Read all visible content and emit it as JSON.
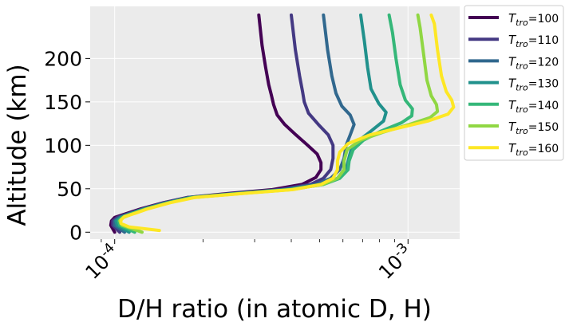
{
  "chart_data": {
    "type": "line",
    "title": "",
    "xlabel": "D/H ratio (in atomic D, H)",
    "ylabel": "Altitude (km)",
    "xscale": "log",
    "xlim": [
      8.25e-05,
      0.0015
    ],
    "ylim": [
      -8,
      260
    ],
    "grid": true,
    "legend_position": "outside-right-top",
    "background": "#ebebeb",
    "x_ticks": [
      {
        "value": 0.0001,
        "base": "10",
        "exponent": "-4"
      },
      {
        "value": 0.001,
        "base": "10",
        "exponent": "-3"
      }
    ],
    "y_ticks": [
      0,
      50,
      100,
      150,
      200
    ],
    "y_tick_labels": [
      "0",
      "50",
      "100",
      "150",
      "200"
    ],
    "series": [
      {
        "name": "T_tro=100",
        "label_main": "T",
        "label_sub": "tro",
        "label_value": "=100",
        "color": "#440154",
        "points": [
          [
            0.0001,
            0
          ],
          [
            9.7e-05,
            8
          ],
          [
            9.75e-05,
            13
          ],
          [
            0.0001,
            17
          ],
          [
            0.000111,
            22
          ],
          [
            0.000123,
            27
          ],
          [
            0.000147,
            34
          ],
          [
            0.000177,
            40
          ],
          [
            0.000252,
            45
          ],
          [
            0.000345,
            49
          ],
          [
            0.000435,
            55
          ],
          [
            0.000485,
            63
          ],
          [
            0.000505,
            72
          ],
          [
            0.000505,
            80
          ],
          [
            0.00049,
            90
          ],
          [
            0.000455,
            100
          ],
          [
            0.000415,
            112
          ],
          [
            0.00038,
            124
          ],
          [
            0.000358,
            135
          ],
          [
            0.000348,
            147
          ],
          [
            0.000342,
            158
          ],
          [
            0.000335,
            170
          ],
          [
            0.000327,
            190
          ],
          [
            0.000318,
            215
          ],
          [
            0.00031,
            250
          ]
        ]
      },
      {
        "name": "T_tro=110",
        "label_main": "T",
        "label_sub": "tro",
        "label_value": "=110",
        "color": "#443983",
        "points": [
          [
            0.000104,
            0
          ],
          [
            9.85e-05,
            8
          ],
          [
            9.85e-05,
            13
          ],
          [
            0.000102,
            17
          ],
          [
            0.000113,
            22
          ],
          [
            0.000125,
            27
          ],
          [
            0.000148,
            34
          ],
          [
            0.000178,
            40
          ],
          [
            0.000262,
            45
          ],
          [
            0.000365,
            49
          ],
          [
            0.000465,
            55
          ],
          [
            0.000515,
            62
          ],
          [
            0.000545,
            72
          ],
          [
            0.000555,
            85
          ],
          [
            0.000555,
            100
          ],
          [
            0.000535,
            112
          ],
          [
            0.000495,
            124
          ],
          [
            0.000458,
            137
          ],
          [
            0.000443,
            150
          ],
          [
            0.000437,
            162
          ],
          [
            0.000427,
            180
          ],
          [
            0.000413,
            210
          ],
          [
            0.0004,
            250
          ]
        ]
      },
      {
        "name": "T_tro=120",
        "label_main": "T",
        "label_sub": "tro",
        "label_value": "=120",
        "color": "#31688e",
        "points": [
          [
            0.000108,
            0
          ],
          [
            0.0001,
            8
          ],
          [
            0.0001,
            13
          ],
          [
            0.000104,
            17
          ],
          [
            0.000114,
            22
          ],
          [
            0.000126,
            27
          ],
          [
            0.00015,
            34
          ],
          [
            0.00018,
            40
          ],
          [
            0.000268,
            45
          ],
          [
            0.000378,
            49
          ],
          [
            0.000485,
            55
          ],
          [
            0.000545,
            62
          ],
          [
            0.000585,
            72
          ],
          [
            0.000605,
            85
          ],
          [
            0.000615,
            100
          ],
          [
            0.000635,
            112
          ],
          [
            0.000655,
            124
          ],
          [
            0.000635,
            135
          ],
          [
            0.000595,
            145
          ],
          [
            0.000568,
            160
          ],
          [
            0.00055,
            180
          ],
          [
            0.000532,
            210
          ],
          [
            0.000515,
            250
          ]
        ]
      },
      {
        "name": "T_tro=130",
        "label_main": "T",
        "label_sub": "tro",
        "label_value": "=130",
        "color": "#21918c",
        "points": [
          [
            0.000112,
            0
          ],
          [
            0.000102,
            8
          ],
          [
            0.000101,
            13
          ],
          [
            0.000105,
            17
          ],
          [
            0.000115,
            22
          ],
          [
            0.000127,
            27
          ],
          [
            0.000152,
            34
          ],
          [
            0.000182,
            40
          ],
          [
            0.000272,
            45
          ],
          [
            0.000388,
            49
          ],
          [
            0.000505,
            55
          ],
          [
            0.000575,
            62
          ],
          [
            0.000615,
            72
          ],
          [
            0.000625,
            82
          ],
          [
            0.00064,
            95
          ],
          [
            0.000682,
            106
          ],
          [
            0.000745,
            116
          ],
          [
            0.000825,
            128
          ],
          [
            0.000842,
            138
          ],
          [
            0.000795,
            148
          ],
          [
            0.000748,
            165
          ],
          [
            0.000728,
            190
          ],
          [
            0.00071,
            220
          ],
          [
            0.00069,
            250
          ]
        ]
      },
      {
        "name": "T_tro=140",
        "label_main": "T",
        "label_sub": "tro",
        "label_value": "=140",
        "color": "#35b779",
        "points": [
          [
            0.000117,
            0
          ],
          [
            0.000104,
            8
          ],
          [
            0.000103,
            13
          ],
          [
            0.000106,
            17
          ],
          [
            0.000116,
            22
          ],
          [
            0.000128,
            27
          ],
          [
            0.000153,
            34
          ],
          [
            0.000184,
            40
          ],
          [
            0.000276,
            45
          ],
          [
            0.000395,
            49
          ],
          [
            0.000515,
            55
          ],
          [
            0.000585,
            62
          ],
          [
            0.000625,
            72
          ],
          [
            0.00063,
            82
          ],
          [
            0.00065,
            95
          ],
          [
            0.000705,
            106
          ],
          [
            0.000805,
            116
          ],
          [
            0.00095,
            126
          ],
          [
            0.00103,
            134
          ],
          [
            0.001035,
            142
          ],
          [
            0.00098,
            152
          ],
          [
            0.00094,
            170
          ],
          [
            0.00091,
            200
          ],
          [
            0.000885,
            230
          ],
          [
            0.000862,
            250
          ]
        ]
      },
      {
        "name": "T_tro=150",
        "label_main": "T",
        "label_sub": "tro",
        "label_value": "=150",
        "color": "#90d743",
        "points": [
          [
            0.000124,
            0
          ],
          [
            0.000106,
            8
          ],
          [
            0.000104,
            13
          ],
          [
            0.000107,
            17
          ],
          [
            0.000117,
            22
          ],
          [
            0.000129,
            27
          ],
          [
            0.000154,
            34
          ],
          [
            0.000186,
            40
          ],
          [
            0.00028,
            45
          ],
          [
            0.0004,
            49
          ],
          [
            0.000512,
            55
          ],
          [
            0.000575,
            62
          ],
          [
            0.000605,
            72
          ],
          [
            0.000605,
            82
          ],
          [
            0.00062,
            95
          ],
          [
            0.00069,
            106
          ],
          [
            0.00082,
            115
          ],
          [
            0.00101,
            124
          ],
          [
            0.00119,
            132
          ],
          [
            0.00126,
            139
          ],
          [
            0.00125,
            147
          ],
          [
            0.0012,
            157
          ],
          [
            0.00116,
            175
          ],
          [
            0.00113,
            205
          ],
          [
            0.0011,
            235
          ],
          [
            0.00108,
            250
          ]
        ]
      },
      {
        "name": "T_tro=160",
        "label_main": "T",
        "label_sub": "tro",
        "label_value": "=160",
        "color": "#fde725",
        "points": [
          [
            0.000142,
            2
          ],
          [
            0.000112,
            6
          ],
          [
            0.000105,
            10
          ],
          [
            0.000105,
            14
          ],
          [
            0.000108,
            18
          ],
          [
            0.000118,
            22
          ],
          [
            0.00013,
            27
          ],
          [
            0.000155,
            34
          ],
          [
            0.000188,
            40
          ],
          [
            0.000284,
            45
          ],
          [
            0.000405,
            49
          ],
          [
            0.000505,
            55
          ],
          [
            0.000555,
            62
          ],
          [
            0.000575,
            72
          ],
          [
            0.000575,
            82
          ],
          [
            0.000585,
            92
          ],
          [
            0.000625,
            102
          ],
          [
            0.00074,
            112
          ],
          [
            0.00093,
            120
          ],
          [
            0.00117,
            128
          ],
          [
            0.00137,
            136
          ],
          [
            0.00143,
            144
          ],
          [
            0.00141,
            152
          ],
          [
            0.00135,
            162
          ],
          [
            0.0013,
            180
          ],
          [
            0.00126,
            210
          ],
          [
            0.00123,
            240
          ],
          [
            0.0012,
            250
          ]
        ]
      }
    ]
  }
}
